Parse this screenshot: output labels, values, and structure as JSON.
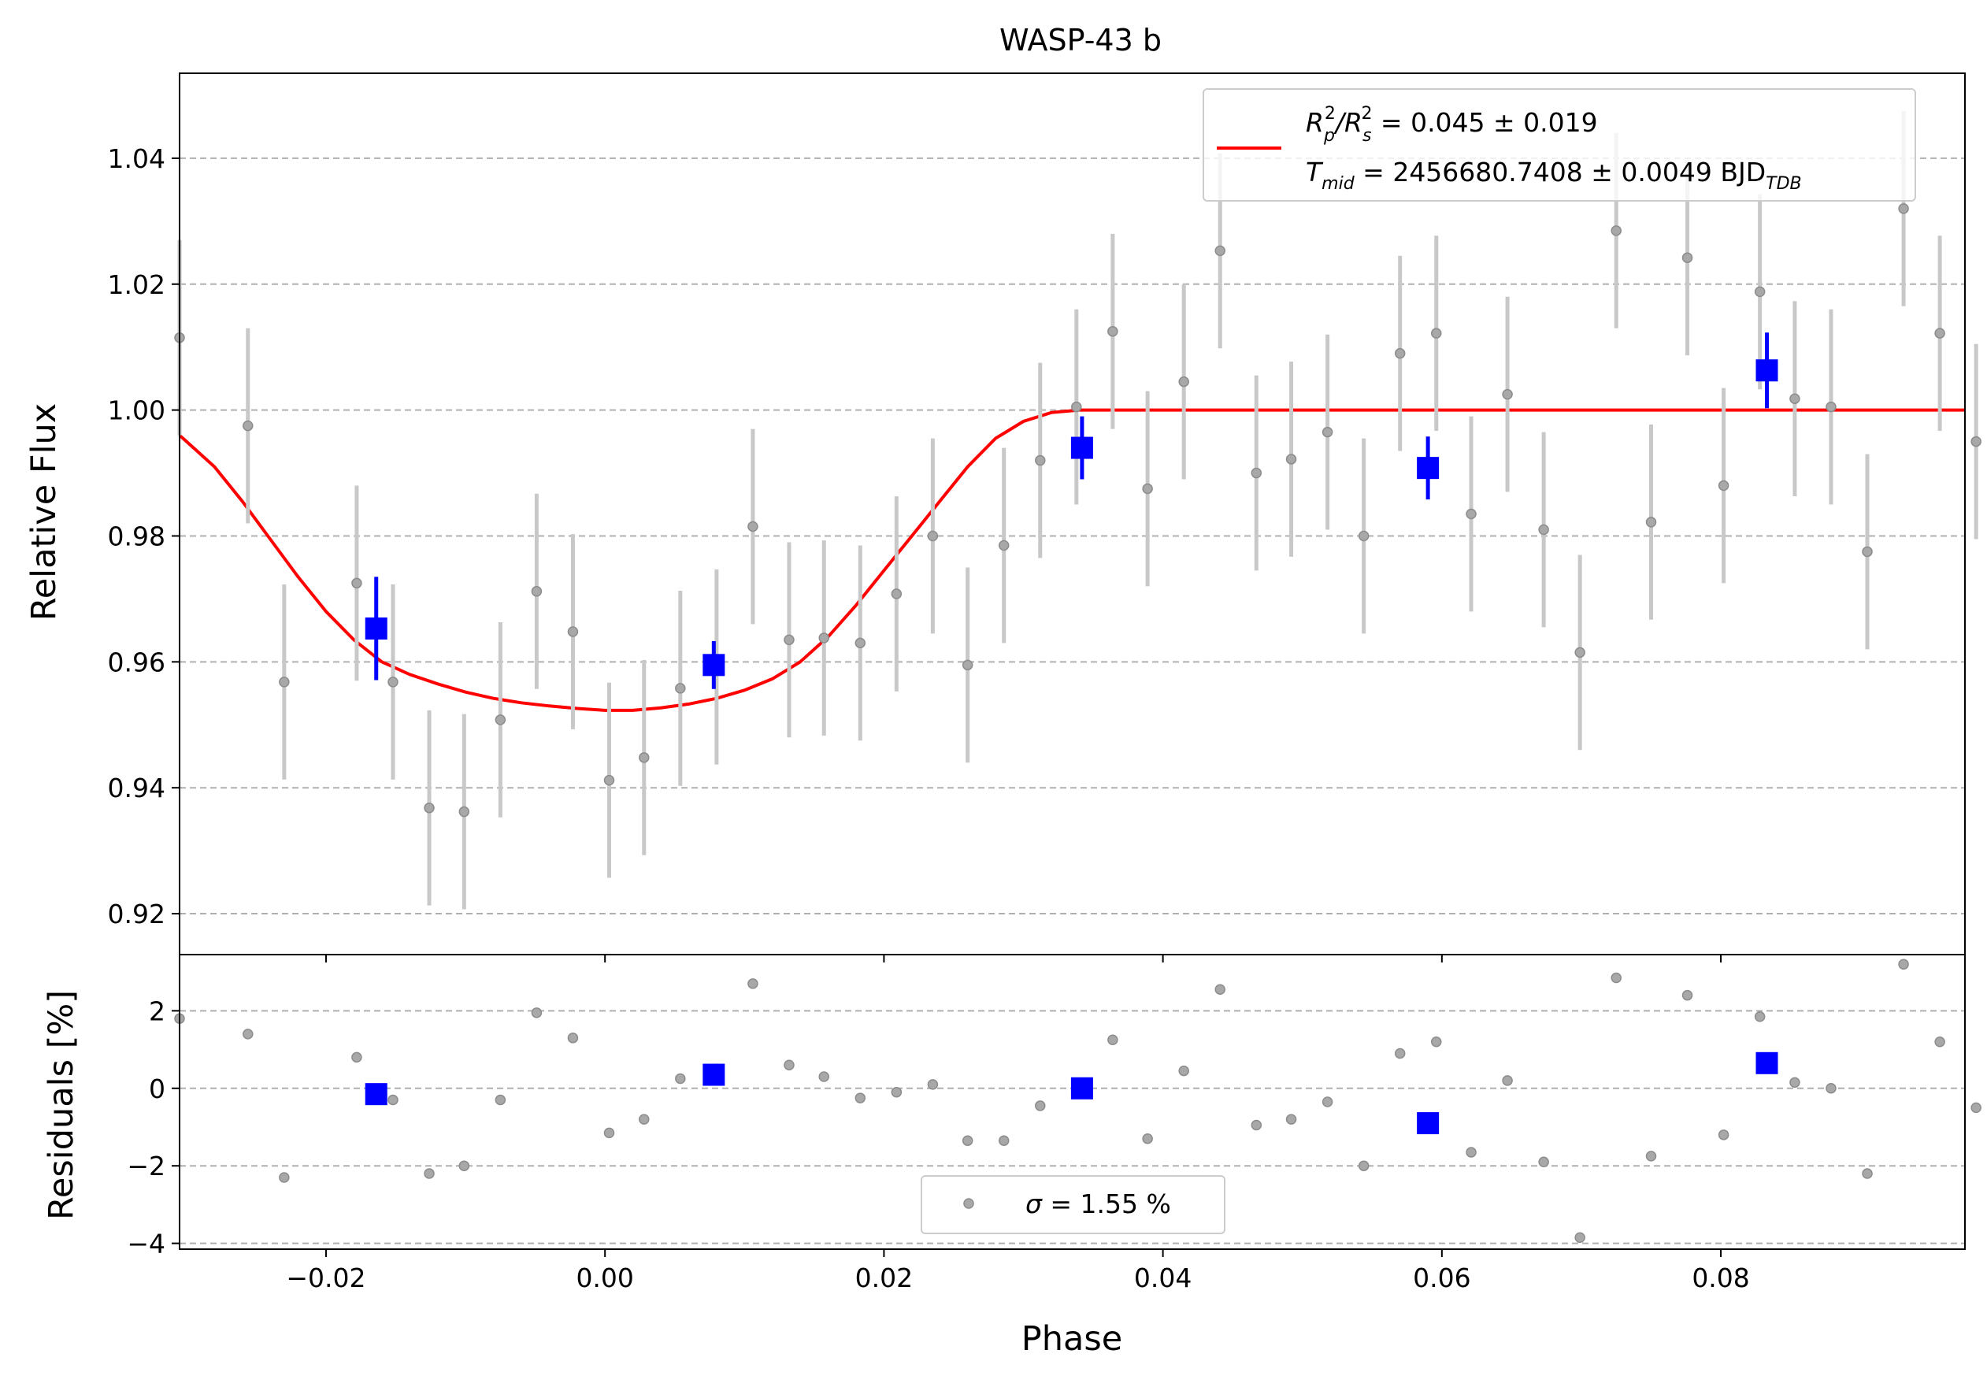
{
  "chart_data": [
    {
      "type": "scatter",
      "panel": "light curve",
      "title": "WASP-43 b",
      "xlabel": "Phase",
      "ylabel": "Relative Flux",
      "xlim": [
        -0.0305,
        0.0975
      ],
      "ylim": [
        0.9135,
        1.0535
      ],
      "x_ticks": [
        -0.02,
        0.0,
        0.02,
        0.04,
        0.06,
        0.08
      ],
      "x_tick_labels": [
        "−0.02",
        "0.00",
        "0.02",
        "0.04",
        "0.06",
        "0.08"
      ],
      "y_ticks": [
        0.92,
        0.94,
        0.96,
        0.98,
        1.0,
        1.02,
        1.04
      ],
      "y_tick_labels": [
        "0.92",
        "0.94",
        "0.96",
        "0.98",
        "1.00",
        "1.02",
        "1.04"
      ],
      "grid": "horizontal dashed",
      "legend_position": "top-right",
      "legend": {
        "line1_prefix": "R",
        "line1_sub_p": "p",
        "line1_sup_2": "2",
        "line1_sep": "/R",
        "line1_sub_s": "s",
        "line1_value": " = 0.045 ± 0.019",
        "line2_prefix": "T",
        "line2_sub": "mid",
        "line2_value": " = 2456680.7408 ± 0.0049 BJD",
        "line2_unit_sub": "TDB"
      },
      "series": [
        {
          "kind": "raw",
          "color": "#8c8c8c",
          "errorbar_color": "#c8c8c8",
          "x": [
            -0.0305,
            -0.0256,
            -0.023,
            -0.0178,
            -0.0152,
            -0.0126,
            -0.0101,
            -0.0075,
            -0.0049,
            -0.0023,
            0.0003,
            0.0028,
            0.0054,
            0.008,
            0.0106,
            0.0132,
            0.0157,
            0.0183,
            0.0209,
            0.0235,
            0.026,
            0.0286,
            0.0312,
            0.0338,
            0.0364,
            0.0389,
            0.0415,
            0.0441,
            0.0467,
            0.0492,
            0.0518,
            0.0544,
            0.057,
            0.0596,
            0.0621,
            0.0647,
            0.0673,
            0.0699,
            0.0725,
            0.075,
            0.0776,
            0.0802,
            0.0828,
            0.0853,
            0.0879,
            0.0905,
            0.0931,
            0.0957,
            0.0983
          ],
          "y": [
            1.0115,
            0.9975,
            0.9568,
            0.9725,
            0.9568,
            0.9368,
            0.9362,
            0.9508,
            0.9712,
            0.9648,
            0.9412,
            0.9448,
            0.9558,
            0.9592,
            0.9815,
            0.9635,
            0.9638,
            0.963,
            0.9708,
            0.98,
            0.9595,
            0.9785,
            0.992,
            1.0005,
            1.0125,
            0.9875,
            1.0045,
            1.0253,
            0.99,
            0.9922,
            0.9965,
            0.98,
            1.009,
            1.0122,
            0.9835,
            1.0025,
            0.981,
            0.9615,
            1.0285,
            0.9822,
            1.0242,
            0.988,
            1.0188,
            1.0018,
            1.0005,
            0.9775,
            1.032,
            1.0122,
            0.995
          ],
          "yerr": 0.0155
        },
        {
          "kind": "binned",
          "color": "#0000ff",
          "x": [
            -0.0164,
            0.0078,
            0.0342,
            0.059,
            0.0833
          ],
          "y": [
            0.9653,
            0.9595,
            0.994,
            0.9908,
            1.0063
          ],
          "yerr": [
            0.0082,
            0.0038,
            0.005,
            0.005,
            0.006
          ]
        },
        {
          "kind": "model",
          "color": "#ff0000",
          "x": [
            -0.0305,
            -0.028,
            -0.026,
            -0.024,
            -0.022,
            -0.02,
            -0.018,
            -0.016,
            -0.014,
            -0.012,
            -0.01,
            -0.008,
            -0.006,
            -0.004,
            -0.002,
            0.0,
            0.002,
            0.004,
            0.006,
            0.008,
            0.01,
            0.012,
            0.014,
            0.016,
            0.018,
            0.02,
            0.022,
            0.024,
            0.026,
            0.028,
            0.03,
            0.032,
            0.034,
            0.036,
            0.04,
            0.06,
            0.08,
            0.0975
          ],
          "y": [
            0.996,
            0.991,
            0.9855,
            0.9795,
            0.9735,
            0.968,
            0.9635,
            0.96,
            0.958,
            0.9565,
            0.9552,
            0.9542,
            0.9535,
            0.953,
            0.9526,
            0.9523,
            0.9523,
            0.9527,
            0.9533,
            0.9542,
            0.9555,
            0.9573,
            0.96,
            0.964,
            0.969,
            0.9745,
            0.98,
            0.9855,
            0.991,
            0.9955,
            0.9982,
            0.9996,
            1.0,
            1.0,
            1.0,
            1.0,
            1.0,
            1.0
          ]
        }
      ]
    },
    {
      "type": "scatter",
      "panel": "residuals",
      "xlabel": "Phase",
      "ylabel": "Residuals [%]",
      "xlim": [
        -0.0305,
        0.0975
      ],
      "ylim": [
        -4.15,
        3.45
      ],
      "y_ticks": [
        -4,
        -2,
        0,
        2
      ],
      "y_tick_labels": [
        "−4",
        "−2",
        "0",
        "2"
      ],
      "grid": "horizontal dashed",
      "legend_position": "bottom-center",
      "legend": {
        "sigma_symbol": "σ",
        "sigma_text": " = 1.55 %"
      },
      "series": [
        {
          "kind": "raw",
          "color": "#8c8c8c",
          "x": [
            -0.0305,
            -0.0256,
            -0.023,
            -0.0178,
            -0.0152,
            -0.0126,
            -0.0101,
            -0.0075,
            -0.0049,
            -0.0023,
            0.0003,
            0.0028,
            0.0054,
            0.008,
            0.0106,
            0.0132,
            0.0157,
            0.0183,
            0.0209,
            0.0235,
            0.026,
            0.0286,
            0.0312,
            0.0338,
            0.0364,
            0.0389,
            0.0415,
            0.0441,
            0.0467,
            0.0492,
            0.0518,
            0.0544,
            0.057,
            0.0596,
            0.0621,
            0.0647,
            0.0673,
            0.0699,
            0.0725,
            0.075,
            0.0776,
            0.0802,
            0.0828,
            0.0853,
            0.0879,
            0.0905,
            0.0931,
            0.0957,
            0.0983
          ],
          "y": [
            1.8,
            1.4,
            -2.3,
            0.8,
            -0.3,
            -2.2,
            -2.0,
            -0.3,
            1.95,
            1.3,
            -1.15,
            -0.8,
            0.25,
            0.5,
            2.7,
            0.6,
            0.3,
            -0.25,
            -0.1,
            0.1,
            -1.35,
            -1.35,
            -0.45,
            0.0,
            1.25,
            -1.3,
            0.45,
            2.55,
            -0.95,
            -0.8,
            -0.35,
            -2.0,
            0.9,
            1.2,
            -1.65,
            0.2,
            -1.9,
            -3.85,
            2.85,
            -1.75,
            2.4,
            -1.2,
            1.85,
            0.15,
            0.0,
            -2.2,
            3.2,
            1.2,
            -0.5
          ]
        },
        {
          "kind": "binned",
          "color": "#0000ff",
          "x": [
            -0.0164,
            0.0078,
            0.0342,
            0.059,
            0.0833
          ],
          "y": [
            -0.15,
            0.35,
            0.0,
            -0.9,
            0.65
          ]
        }
      ]
    }
  ]
}
